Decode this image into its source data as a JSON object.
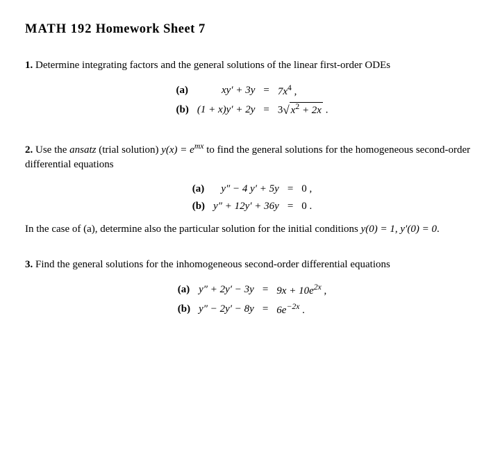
{
  "title": {
    "course": "MATH 192",
    "rest": "  Homework Sheet 7"
  },
  "p1": {
    "num": "1.",
    "intro": "Determine integrating factors and the general solutions of the linear first-order ODEs",
    "a": {
      "label": "(a)",
      "lhs": "xy′ + 3y",
      "eq": "=",
      "rhs_pre": "7x",
      "rhs_sup": "4",
      "rhs_post": " ,"
    },
    "b": {
      "label": "(b)",
      "lhs": "(1 + x)y′ + 2y",
      "eq": "=",
      "rhs_pre": "3",
      "sqrt_pre": "x",
      "sqrt_sup": "2",
      "sqrt_post": " + 2x",
      "rhs_post": " ."
    }
  },
  "p2": {
    "num": "2.",
    "intro_a": "Use the ",
    "intro_ansatz": "ansatz",
    "intro_b": " (trial solution) ",
    "intro_y": "y(x) = e",
    "intro_sup": "mx",
    "intro_c": " to find the general solutions for the homogeneous second-order differential equations",
    "a": {
      "label": "(a)",
      "lhs": "y″  −  4 y′  +  5y",
      "eq": "=",
      "rhs": "0 ,"
    },
    "b": {
      "label": "(b)",
      "lhs": "y″  + 12y′  + 36y",
      "eq": "=",
      "rhs": "0 ."
    },
    "note_a": "In the case of (a), determine also the particular solution for the initial conditions ",
    "note_ic1": "y(0) = 1",
    "note_sep": ", ",
    "note_ic2": "y′(0) = 0",
    "note_end": "."
  },
  "p3": {
    "num": "3.",
    "intro": "Find the general solutions for the inhomogeneous second-order differential equations",
    "a": {
      "label": "(a)",
      "lhs": "y″  +  2y′  −  3y",
      "eq": "=",
      "rhs_pre": "9x + 10e",
      "rhs_sup": "2x",
      "rhs_post": " ,"
    },
    "b": {
      "label": "(b)",
      "lhs": "y″  −  2y′  −  8y",
      "eq": "=",
      "rhs_pre": "6e",
      "rhs_sup": "−2x",
      "rhs_post": " ."
    }
  }
}
